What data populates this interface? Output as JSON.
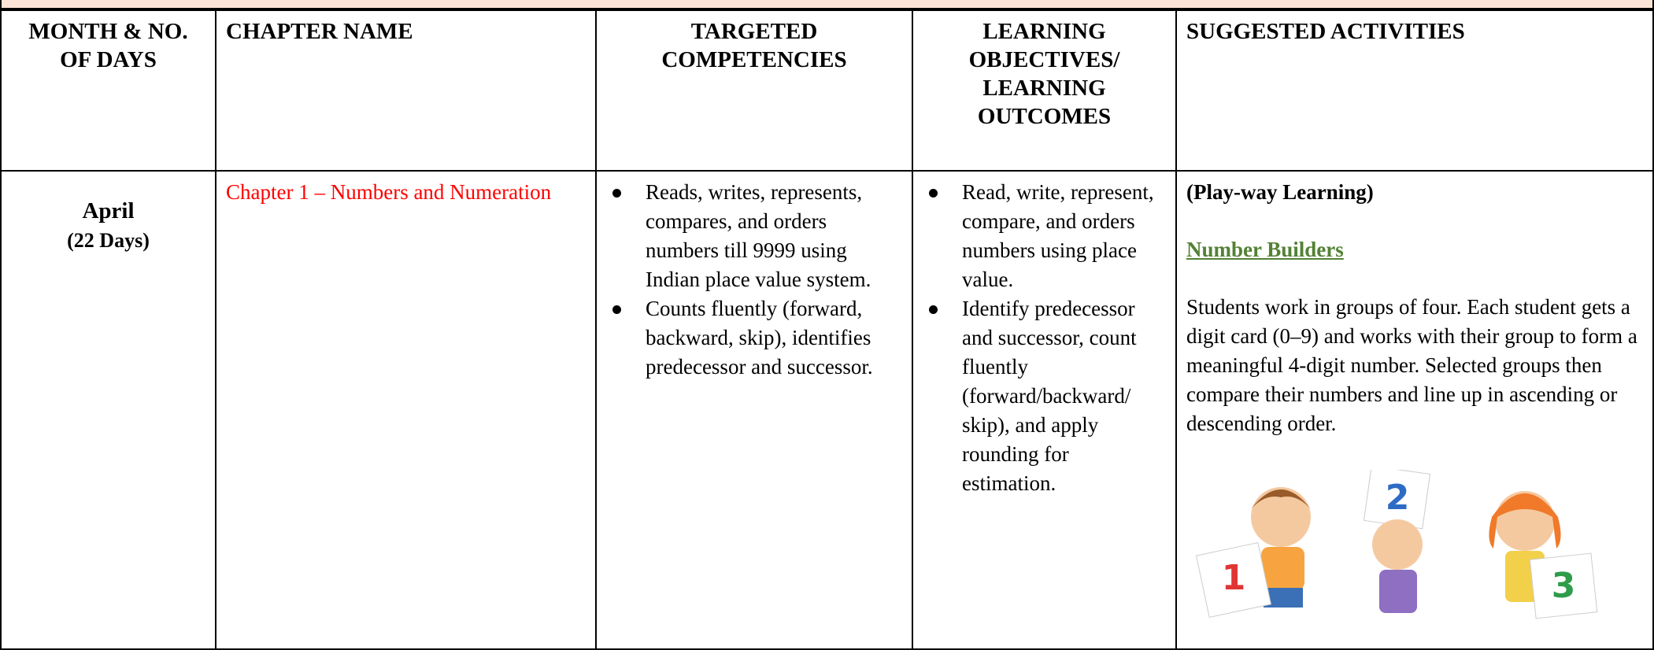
{
  "table": {
    "headers": [
      "MONTH  & NO. OF DAYS",
      "CHAPTER NAME",
      "TARGETED COMPETENCIES",
      "LEARNING OBJECTIVES/ LEARNING OUTCOMES",
      "SUGGESTED ACTIVITIES"
    ],
    "row": {
      "month": "April",
      "days": "(22 Days)",
      "chapter": "Chapter 1 – Numbers and Numeration",
      "competencies": [
        "Reads, writes, represents, compares, and orders numbers till 9999 using Indian place value system.",
        "Counts fluently (forward, backward, skip), identifies predecessor and successor."
      ],
      "objectives": [
        "Read, write, represent, compare, and orders numbers using place value.",
        "Identify predecessor and successor, count fluently (forward/backward/ skip), and apply rounding for estimation."
      ],
      "activities": {
        "heading": "(Play-way Learning)",
        "link": "Number Builders",
        "text": "Students work in groups of four. Each student gets a digit card (0–9) and works with their group to form a meaningful 4-digit number. Selected groups then compare their numbers and line up in ascending or descending order."
      }
    }
  },
  "illustration": {
    "cards": [
      "1",
      "2",
      "3"
    ]
  }
}
